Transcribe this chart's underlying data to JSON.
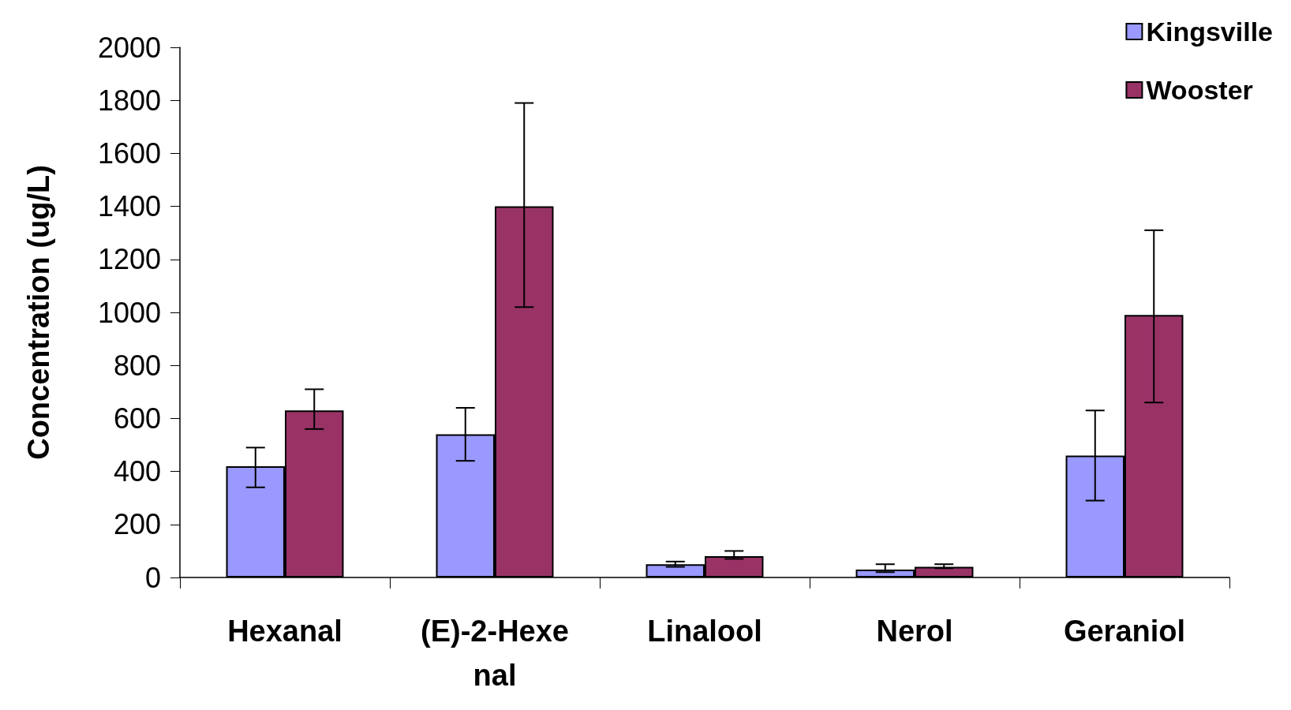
{
  "chart_data": {
    "type": "bar",
    "ylabel": "Concentration (ug/L)",
    "categories": [
      "Hexanal",
      "(E)-2-Hexenal",
      "Linalool",
      "Nerol",
      "Geraniol"
    ],
    "series": [
      {
        "name": "Kingsville",
        "color": "#9999ff",
        "values": [
          420,
          540,
          50,
          30,
          460
        ],
        "errors": [
          [
            340,
            490
          ],
          [
            440,
            640
          ],
          [
            40,
            60
          ],
          [
            20,
            50
          ],
          [
            290,
            630
          ]
        ]
      },
      {
        "name": "Wooster",
        "color": "#993366",
        "values": [
          630,
          1400,
          80,
          40,
          990
        ],
        "errors": [
          [
            560,
            710
          ],
          [
            1020,
            1790
          ],
          [
            70,
            100
          ],
          [
            35,
            50
          ],
          [
            660,
            1310
          ]
        ]
      }
    ],
    "ylim": [
      0,
      2000
    ],
    "yticks": [
      0,
      200,
      400,
      600,
      800,
      1000,
      1200,
      1400,
      1600,
      1800,
      2000
    ],
    "grid": false,
    "legend": "top right"
  }
}
